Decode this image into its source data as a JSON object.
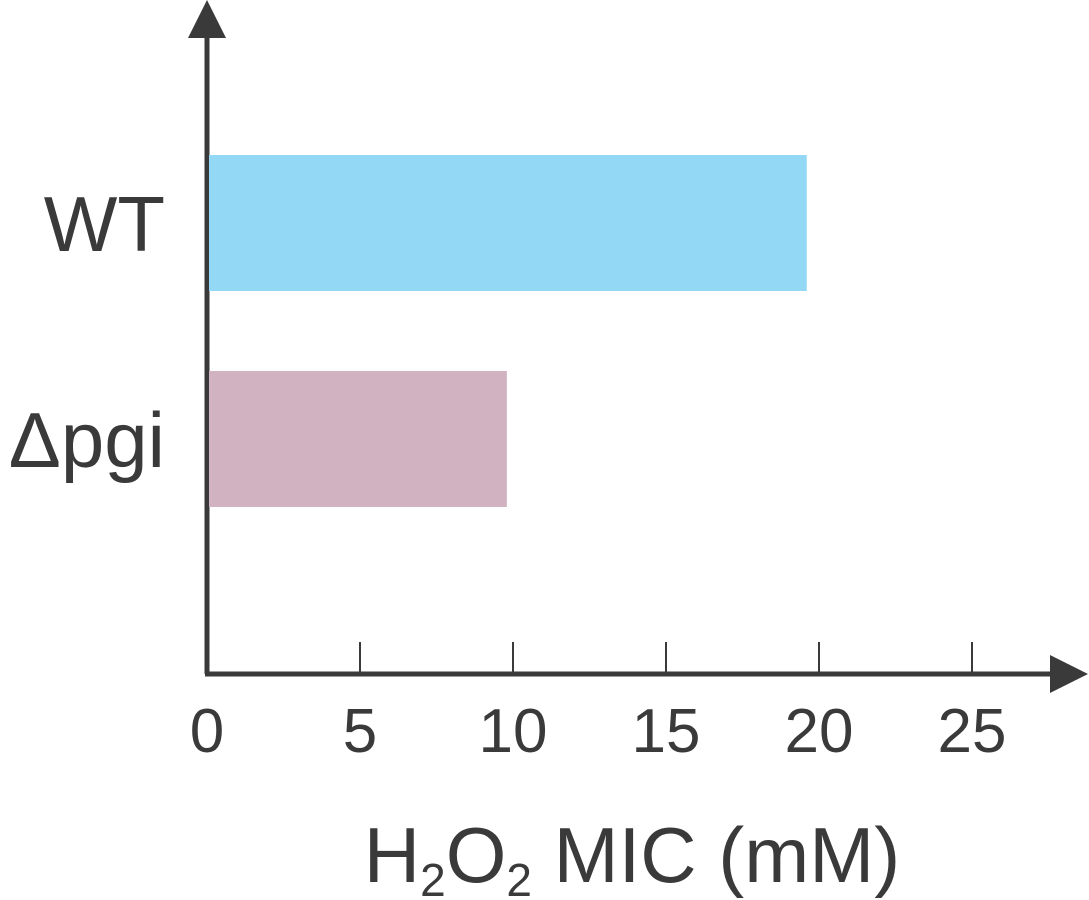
{
  "chart_data": {
    "type": "bar",
    "orientation": "horizontal",
    "categories": [
      "WT",
      "Δpgi"
    ],
    "values": [
      19.6,
      9.8
    ],
    "colors": [
      "#93d8f4",
      "#d0b2c0"
    ],
    "xlabel": {
      "prefix": "H",
      "sub1": "2",
      "mid": "O",
      "sub2": "2",
      "suffix": " MIC (mM)"
    },
    "xlim": [
      0,
      27.5
    ],
    "xticks": [
      0,
      5,
      10,
      15,
      20,
      25
    ],
    "xtick_labels": [
      "0",
      "5",
      "10",
      "15",
      "20",
      "25"
    ],
    "grid": false
  }
}
